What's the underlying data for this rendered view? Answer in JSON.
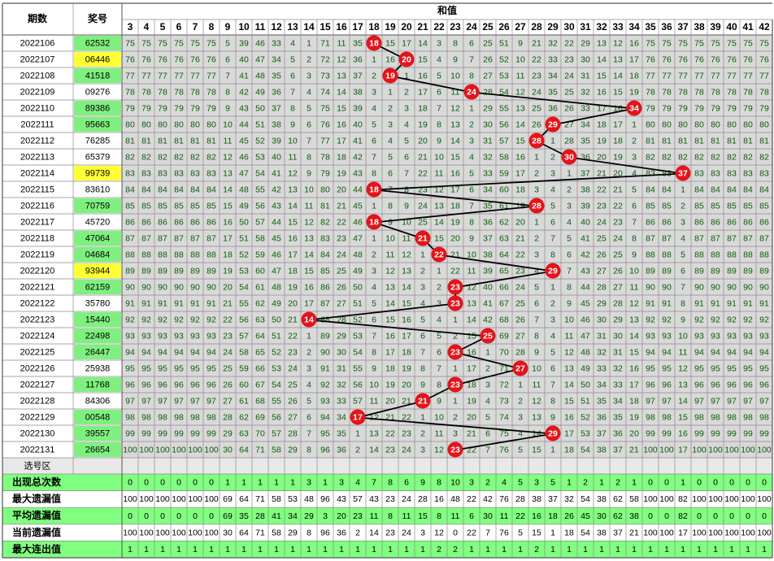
{
  "header": {
    "period": "期数",
    "prize": "奖号",
    "sum": "和值",
    "columns": [
      3,
      4,
      5,
      6,
      7,
      8,
      9,
      10,
      11,
      12,
      13,
      14,
      15,
      16,
      17,
      18,
      19,
      20,
      21,
      22,
      23,
      24,
      25,
      26,
      27,
      28,
      29,
      30,
      31,
      32,
      33,
      34,
      35,
      36,
      37,
      38,
      39,
      40,
      41,
      42
    ]
  },
  "colors": {
    "grid": "#d9d9d9",
    "text": "#0a5a0a",
    "hit": "#e3141b",
    "trend": "#000000"
  },
  "rows": [
    {
      "period": "2022106",
      "prize": "62532",
      "prize_color": "#7ff07f",
      "cells": [
        75,
        75,
        75,
        75,
        75,
        75,
        5,
        39,
        46,
        33,
        4,
        1,
        71,
        11,
        35,
        18,
        15,
        17,
        14,
        3,
        8,
        6,
        25,
        51,
        9,
        21,
        32,
        22,
        29,
        13,
        12,
        16,
        75,
        75,
        75,
        75,
        75,
        75,
        75,
        75
      ]
    },
    {
      "period": "2022107",
      "prize": "06446",
      "prize_color": "#ffff33",
      "cells": [
        76,
        76,
        76,
        76,
        76,
        76,
        6,
        40,
        47,
        34,
        5,
        2,
        72,
        12,
        36,
        1,
        16,
        20,
        15,
        4,
        9,
        7,
        26,
        52,
        10,
        22,
        33,
        23,
        30,
        14,
        13,
        17,
        76,
        76,
        76,
        76,
        76,
        76,
        76,
        76
      ]
    },
    {
      "period": "2022108",
      "prize": "41518",
      "prize_color": "#7ff07f",
      "cells": [
        77,
        77,
        77,
        77,
        77,
        77,
        7,
        41,
        48,
        35,
        6,
        3,
        73,
        13,
        37,
        2,
        19,
        1,
        16,
        5,
        10,
        8,
        27,
        53,
        11,
        23,
        34,
        24,
        31,
        15,
        14,
        18,
        77,
        77,
        77,
        77,
        77,
        77,
        77,
        77
      ]
    },
    {
      "period": "2022109",
      "prize": "09276",
      "prize_color": "#ffffff",
      "cells": [
        78,
        78,
        78,
        78,
        78,
        78,
        8,
        42,
        49,
        36,
        7,
        4,
        74,
        14,
        38,
        3,
        1,
        2,
        17,
        6,
        11,
        24,
        28,
        54,
        12,
        24,
        35,
        25,
        32,
        16,
        15,
        19,
        78,
        78,
        78,
        78,
        78,
        78,
        78,
        78
      ]
    },
    {
      "period": "2022110",
      "prize": "89386",
      "prize_color": "#7ff07f",
      "cells": [
        79,
        79,
        79,
        79,
        79,
        79,
        9,
        43,
        50,
        37,
        8,
        5,
        75,
        15,
        39,
        4,
        2,
        3,
        18,
        7,
        12,
        1,
        29,
        55,
        13,
        25,
        36,
        26,
        33,
        17,
        16,
        34,
        79,
        79,
        79,
        79,
        79,
        79,
        79,
        79
      ]
    },
    {
      "period": "2022111",
      "prize": "95663",
      "prize_color": "#7ff07f",
      "cells": [
        80,
        80,
        80,
        80,
        80,
        80,
        10,
        44,
        51,
        38,
        9,
        6,
        76,
        16,
        40,
        5,
        3,
        4,
        19,
        8,
        13,
        2,
        30,
        56,
        14,
        26,
        29,
        27,
        34,
        18,
        17,
        1,
        80,
        80,
        80,
        80,
        80,
        80,
        80,
        80
      ]
    },
    {
      "period": "2022112",
      "prize": "76285",
      "prize_color": "#ffffff",
      "cells": [
        81,
        81,
        81,
        81,
        81,
        81,
        11,
        45,
        52,
        39,
        10,
        7,
        77,
        17,
        41,
        6,
        4,
        5,
        20,
        9,
        14,
        3,
        31,
        57,
        15,
        28,
        1,
        28,
        35,
        19,
        18,
        2,
        81,
        81,
        81,
        81,
        81,
        81,
        81,
        81
      ]
    },
    {
      "period": "2022113",
      "prize": "65379",
      "prize_color": "#ffffff",
      "cells": [
        82,
        82,
        82,
        82,
        82,
        82,
        12,
        46,
        53,
        40,
        11,
        8,
        78,
        18,
        42,
        7,
        5,
        6,
        21,
        10,
        15,
        4,
        32,
        58,
        16,
        1,
        2,
        30,
        36,
        20,
        19,
        3,
        82,
        82,
        82,
        82,
        82,
        82,
        82,
        82
      ]
    },
    {
      "period": "2022114",
      "prize": "99739",
      "prize_color": "#ffff33",
      "cells": [
        83,
        83,
        83,
        83,
        83,
        83,
        13,
        47,
        54,
        41,
        12,
        9,
        79,
        19,
        43,
        8,
        6,
        7,
        22,
        11,
        16,
        5,
        33,
        59,
        17,
        2,
        3,
        1,
        37,
        21,
        20,
        4,
        83,
        83,
        37,
        83,
        83,
        83,
        83,
        83
      ]
    },
    {
      "period": "2022115",
      "prize": "83610",
      "prize_color": "#ffffff",
      "cells": [
        84,
        84,
        84,
        84,
        84,
        84,
        14,
        48,
        55,
        42,
        13,
        10,
        80,
        20,
        44,
        18,
        7,
        8,
        23,
        12,
        17,
        6,
        34,
        60,
        18,
        3,
        4,
        2,
        38,
        22,
        21,
        5,
        84,
        84,
        1,
        84,
        84,
        84,
        84,
        84
      ]
    },
    {
      "period": "2022116",
      "prize": "70759",
      "prize_color": "#7ff07f",
      "cells": [
        85,
        85,
        85,
        85,
        85,
        85,
        15,
        49,
        56,
        43,
        14,
        11,
        81,
        21,
        45,
        1,
        8,
        9,
        24,
        13,
        18,
        7,
        35,
        61,
        19,
        28,
        5,
        3,
        39,
        23,
        22,
        6,
        85,
        85,
        2,
        85,
        85,
        85,
        85,
        85
      ]
    },
    {
      "period": "2022117",
      "prize": "45720",
      "prize_color": "#ffffff",
      "cells": [
        86,
        86,
        86,
        86,
        86,
        86,
        16,
        50,
        57,
        44,
        15,
        12,
        82,
        22,
        46,
        18,
        9,
        10,
        25,
        14,
        19,
        8,
        36,
        62,
        20,
        1,
        6,
        4,
        40,
        24,
        23,
        7,
        86,
        86,
        3,
        86,
        86,
        86,
        86,
        86
      ]
    },
    {
      "period": "2022118",
      "prize": "47064",
      "prize_color": "#7ff07f",
      "cells": [
        87,
        87,
        87,
        87,
        87,
        87,
        17,
        51,
        58,
        45,
        16,
        13,
        83,
        23,
        47,
        1,
        10,
        11,
        21,
        15,
        20,
        9,
        37,
        63,
        21,
        2,
        7,
        5,
        41,
        25,
        24,
        8,
        87,
        87,
        4,
        87,
        87,
        87,
        87,
        87
      ]
    },
    {
      "period": "2022119",
      "prize": "04684",
      "prize_color": "#7ff07f",
      "cells": [
        88,
        88,
        88,
        88,
        88,
        88,
        18,
        52,
        59,
        46,
        17,
        14,
        84,
        24,
        48,
        2,
        11,
        12,
        1,
        22,
        21,
        10,
        38,
        64,
        22,
        3,
        8,
        6,
        42,
        26,
        25,
        9,
        88,
        88,
        5,
        88,
        88,
        88,
        88,
        88
      ]
    },
    {
      "period": "2022120",
      "prize": "93944",
      "prize_color": "#ffff33",
      "cells": [
        89,
        89,
        89,
        89,
        89,
        89,
        19,
        53,
        60,
        47,
        18,
        15,
        85,
        25,
        49,
        3,
        12,
        13,
        2,
        1,
        22,
        11,
        39,
        65,
        23,
        4,
        29,
        7,
        43,
        27,
        26,
        10,
        89,
        89,
        6,
        89,
        89,
        89,
        89,
        89
      ]
    },
    {
      "period": "2022121",
      "prize": "62159",
      "prize_color": "#7ff07f",
      "cells": [
        90,
        90,
        90,
        90,
        90,
        90,
        20,
        54,
        61,
        48,
        19,
        16,
        86,
        26,
        50,
        4,
        13,
        14,
        3,
        2,
        23,
        12,
        40,
        66,
        24,
        5,
        1,
        8,
        44,
        28,
        27,
        11,
        90,
        90,
        7,
        90,
        90,
        90,
        90,
        90
      ]
    },
    {
      "period": "2022122",
      "prize": "35780",
      "prize_color": "#ffffff",
      "cells": [
        91,
        91,
        91,
        91,
        91,
        91,
        21,
        55,
        62,
        49,
        20,
        17,
        87,
        27,
        51,
        5,
        14,
        15,
        4,
        3,
        23,
        13,
        41,
        67,
        25,
        6,
        2,
        9,
        45,
        29,
        28,
        12,
        91,
        91,
        8,
        91,
        91,
        91,
        91,
        91
      ]
    },
    {
      "period": "2022123",
      "prize": "15440",
      "prize_color": "#7ff07f",
      "cells": [
        92,
        92,
        92,
        92,
        92,
        92,
        22,
        56,
        63,
        50,
        21,
        14,
        88,
        28,
        52,
        6,
        15,
        16,
        5,
        4,
        1,
        14,
        42,
        68,
        26,
        7,
        3,
        10,
        46,
        30,
        29,
        13,
        92,
        92,
        9,
        92,
        92,
        92,
        92,
        92
      ]
    },
    {
      "period": "2022124",
      "prize": "22498",
      "prize_color": "#7ff07f",
      "cells": [
        93,
        93,
        93,
        93,
        93,
        93,
        23,
        57,
        64,
        51,
        22,
        1,
        89,
        29,
        53,
        7,
        16,
        17,
        6,
        5,
        2,
        15,
        25,
        69,
        27,
        8,
        4,
        11,
        47,
        31,
        30,
        14,
        93,
        93,
        10,
        93,
        93,
        93,
        93,
        93
      ]
    },
    {
      "period": "2022125",
      "prize": "26447",
      "prize_color": "#7ff07f",
      "cells": [
        94,
        94,
        94,
        94,
        94,
        94,
        24,
        58,
        65,
        52,
        23,
        2,
        90,
        30,
        54,
        8,
        17,
        18,
        7,
        6,
        23,
        16,
        1,
        70,
        28,
        9,
        5,
        12,
        48,
        32,
        31,
        15,
        94,
        94,
        11,
        94,
        94,
        94,
        94,
        94
      ]
    },
    {
      "period": "2022126",
      "prize": "25938",
      "prize_color": "#ffffff",
      "cells": [
        95,
        95,
        95,
        95,
        95,
        95,
        25,
        59,
        66,
        53,
        24,
        3,
        91,
        31,
        55,
        9,
        18,
        19,
        8,
        7,
        1,
        17,
        2,
        71,
        27,
        10,
        6,
        13,
        49,
        33,
        32,
        16,
        95,
        95,
        12,
        95,
        95,
        95,
        95,
        95
      ]
    },
    {
      "period": "2022127",
      "prize": "11768",
      "prize_color": "#7ff07f",
      "cells": [
        96,
        96,
        96,
        96,
        96,
        96,
        26,
        60,
        67,
        54,
        25,
        4,
        92,
        32,
        56,
        10,
        19,
        20,
        9,
        8,
        23,
        18,
        3,
        72,
        1,
        11,
        7,
        14,
        50,
        34,
        33,
        17,
        96,
        96,
        13,
        96,
        96,
        96,
        96,
        96
      ]
    },
    {
      "period": "2022128",
      "prize": "84306",
      "prize_color": "#ffffff",
      "cells": [
        97,
        97,
        97,
        97,
        97,
        97,
        27,
        61,
        68,
        55,
        26,
        5,
        93,
        33,
        57,
        11,
        20,
        21,
        21,
        9,
        1,
        19,
        4,
        73,
        2,
        12,
        8,
        15,
        51,
        35,
        34,
        18,
        97,
        97,
        14,
        97,
        97,
        97,
        97,
        97
      ]
    },
    {
      "period": "2022129",
      "prize": "00548",
      "prize_color": "#7ff07f",
      "cells": [
        98,
        98,
        98,
        98,
        98,
        98,
        28,
        62,
        69,
        56,
        27,
        6,
        94,
        34,
        17,
        12,
        21,
        22,
        1,
        10,
        2,
        20,
        5,
        74,
        3,
        13,
        9,
        16,
        52,
        36,
        35,
        19,
        98,
        98,
        15,
        98,
        98,
        98,
        98,
        98
      ]
    },
    {
      "period": "2022130",
      "prize": "39557",
      "prize_color": "#7ff07f",
      "cells": [
        99,
        99,
        99,
        99,
        99,
        99,
        29,
        63,
        70,
        57,
        28,
        7,
        95,
        35,
        1,
        13,
        22,
        23,
        2,
        11,
        3,
        21,
        6,
        75,
        4,
        14,
        29,
        17,
        53,
        37,
        36,
        20,
        99,
        99,
        16,
        99,
        99,
        99,
        99,
        99
      ]
    },
    {
      "period": "2022131",
      "prize": "26654",
      "prize_color": "#7ff07f",
      "cells": [
        100,
        100,
        100,
        100,
        100,
        100,
        30,
        64,
        71,
        58,
        29,
        8,
        96,
        36,
        2,
        14,
        23,
        24,
        3,
        12,
        23,
        22,
        7,
        76,
        5,
        15,
        1,
        18,
        54,
        38,
        37,
        21,
        100,
        100,
        17,
        100,
        100,
        100,
        100,
        100
      ]
    }
  ],
  "select_row": "选号区",
  "stats": [
    {
      "label": "出现总次数",
      "background": "#80ff80",
      "values": [
        0,
        0,
        0,
        0,
        0,
        0,
        1,
        1,
        1,
        1,
        1,
        3,
        1,
        3,
        4,
        7,
        8,
        6,
        9,
        8,
        10,
        3,
        2,
        4,
        5,
        3,
        5,
        1,
        2,
        1,
        2,
        1,
        0,
        0,
        1,
        0,
        0,
        0,
        0,
        0
      ]
    },
    {
      "label": "最大遗漏值",
      "background": "#ffffff",
      "values": [
        100,
        100,
        100,
        100,
        100,
        100,
        69,
        64,
        71,
        58,
        53,
        48,
        96,
        43,
        57,
        43,
        23,
        24,
        28,
        16,
        48,
        22,
        42,
        76,
        28,
        38,
        37,
        32,
        54,
        38,
        62,
        58,
        100,
        100,
        82,
        100,
        100,
        100,
        100,
        100
      ]
    },
    {
      "label": "平均遗漏值",
      "background": "#80ff80",
      "values": [
        0,
        0,
        0,
        0,
        0,
        0,
        69,
        35,
        28,
        41,
        34,
        29,
        3,
        20,
        23,
        11,
        8,
        11,
        15,
        8,
        11,
        6,
        30,
        11,
        22,
        16,
        18,
        26,
        45,
        30,
        62,
        38,
        0,
        0,
        82,
        0,
        0,
        0,
        0,
        0
      ]
    },
    {
      "label": "当前遗漏值",
      "background": "#ffffff",
      "values": [
        100,
        100,
        100,
        100,
        100,
        100,
        30,
        64,
        71,
        58,
        29,
        8,
        96,
        36,
        2,
        14,
        23,
        24,
        3,
        12,
        0,
        22,
        7,
        76,
        5,
        15,
        1,
        18,
        54,
        38,
        37,
        21,
        100,
        100,
        17,
        100,
        100,
        100,
        100,
        100
      ]
    },
    {
      "label": "最大连出值",
      "background": "#80ff80",
      "values": [
        1,
        1,
        1,
        1,
        1,
        1,
        1,
        1,
        1,
        1,
        1,
        1,
        1,
        1,
        1,
        1,
        1,
        1,
        1,
        2,
        2,
        1,
        1,
        1,
        1,
        2,
        1,
        1,
        1,
        1,
        1,
        1,
        1,
        1,
        1,
        1,
        1,
        1,
        1,
        1
      ]
    }
  ]
}
